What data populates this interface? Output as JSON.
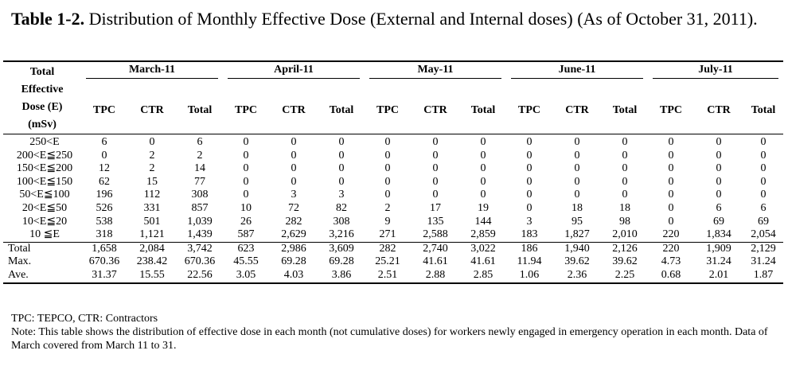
{
  "title": {
    "bold": "Table 1-2.",
    "text": " Distribution of Monthly Effective Dose  (External and Internal doses) (As of October 31, 2011)."
  },
  "table": {
    "dose_header": [
      "Total",
      "Effective",
      "Dose (E)",
      "(mSv)"
    ],
    "months": [
      "March-11",
      "April-11",
      "May-11",
      "June-11",
      "July-11"
    ],
    "sub_headers": [
      "TPC",
      "CTR",
      "Total"
    ],
    "distribution_rows": [
      {
        "label": "250<E",
        "values": [
          "6",
          "0",
          "6",
          "0",
          "0",
          "0",
          "0",
          "0",
          "0",
          "0",
          "0",
          "0",
          "0",
          "0",
          "0"
        ]
      },
      {
        "label": "200<E≦250",
        "values": [
          "0",
          "2",
          "2",
          "0",
          "0",
          "0",
          "0",
          "0",
          "0",
          "0",
          "0",
          "0",
          "0",
          "0",
          "0"
        ]
      },
      {
        "label": "150<E≦200",
        "values": [
          "12",
          "2",
          "14",
          "0",
          "0",
          "0",
          "0",
          "0",
          "0",
          "0",
          "0",
          "0",
          "0",
          "0",
          "0"
        ]
      },
      {
        "label": "100<E≦150",
        "values": [
          "62",
          "15",
          "77",
          "0",
          "0",
          "0",
          "0",
          "0",
          "0",
          "0",
          "0",
          "0",
          "0",
          "0",
          "0"
        ]
      },
      {
        "label": "50<E≦100",
        "values": [
          "196",
          "112",
          "308",
          "0",
          "3",
          "3",
          "0",
          "0",
          "0",
          "0",
          "0",
          "0",
          "0",
          "0",
          "0"
        ]
      },
      {
        "label": "20<E≦50",
        "values": [
          "526",
          "331",
          "857",
          "10",
          "72",
          "82",
          "2",
          "17",
          "19",
          "0",
          "18",
          "18",
          "0",
          "6",
          "6"
        ]
      },
      {
        "label": "10<E≦20",
        "values": [
          "538",
          "501",
          "1,039",
          "26",
          "282",
          "308",
          "9",
          "135",
          "144",
          "3",
          "95",
          "98",
          "0",
          "69",
          "69"
        ]
      },
      {
        "label": "10 ≦E",
        "values": [
          "318",
          "1,121",
          "1,439",
          "587",
          "2,629",
          "3,216",
          "271",
          "2,588",
          "2,859",
          "183",
          "1,827",
          "2,010",
          "220",
          "1,834",
          "2,054"
        ]
      }
    ],
    "summary_rows": [
      {
        "label": "Total",
        "values": [
          "1,658",
          "2,084",
          "3,742",
          "623",
          "2,986",
          "3,609",
          "282",
          "2,740",
          "3,022",
          "186",
          "1,940",
          "2,126",
          "220",
          "1,909",
          "2,129"
        ]
      },
      {
        "label": "Max.",
        "values": [
          "670.36",
          "238.42",
          "670.36",
          "45.55",
          "69.28",
          "69.28",
          "25.21",
          "41.61",
          "41.61",
          "11.94",
          "39.62",
          "39.62",
          "4.73",
          "31.24",
          "31.24"
        ]
      },
      {
        "label": "Ave.",
        "values": [
          "31.37",
          "15.55",
          "22.56",
          "3.05",
          "4.03",
          "3.86",
          "2.51",
          "2.88",
          "2.85",
          "1.06",
          "2.36",
          "2.25",
          "0.68",
          "2.01",
          "1.87"
        ]
      }
    ]
  },
  "notes": {
    "legend": "TPC: TEPCO, CTR: Contractors",
    "note": "Note: This table shows the distribution of effective dose in each month (not cumulative doses) for workers newly engaged in emergency operation in each month.  Data of March covered from March 11 to 31."
  }
}
